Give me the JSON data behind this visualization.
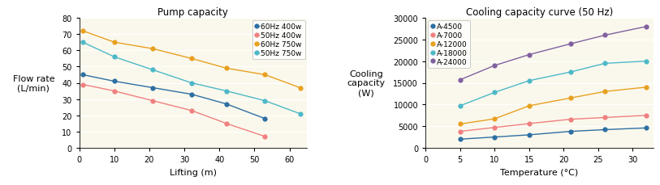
{
  "title1": "Pump capacity",
  "title2": "Cooling capacity curve (50 Hz)",
  "xlabel1": "Lifting (m)",
  "xlabel2": "Temperature (°C)",
  "ylabel1": "Flow rate\n(L/min)",
  "ylabel2": "Cooling\ncapacity\n(W)",
  "bg_color": "#faf8ec",
  "pump_x": [
    1,
    10,
    21,
    32,
    42,
    53,
    63
  ],
  "pump_60hz_400w": [
    45,
    41,
    37,
    33,
    27,
    18,
    null
  ],
  "pump_50hz_400w": [
    39,
    35,
    29,
    23,
    15,
    7,
    null
  ],
  "pump_60hz_750w": [
    72,
    65,
    61,
    55,
    49,
    45,
    37
  ],
  "pump_50hz_750w": [
    65,
    56,
    48,
    40,
    35,
    29,
    21
  ],
  "pump_colors": [
    "#2e6fa3",
    "#f08080",
    "#e8a020",
    "#4db8c8"
  ],
  "pump_labels": [
    "60Hz 400w",
    "50Hz 400w",
    "60Hz 750w",
    "50Hz 750w"
  ],
  "cool_x": [
    5,
    10,
    15,
    21,
    26,
    32
  ],
  "cool_A4500": [
    2000,
    2500,
    3000,
    3800,
    4200,
    4600
  ],
  "cool_A7000": [
    3800,
    4700,
    5600,
    6600,
    7000,
    7500
  ],
  "cool_A12000": [
    5500,
    6700,
    9700,
    11500,
    13000,
    14000
  ],
  "cool_A18000": [
    9700,
    12800,
    15500,
    17500,
    19500,
    20000
  ],
  "cool_A24000": [
    15700,
    19000,
    21500,
    24000,
    26000,
    28000
  ],
  "cool_colors": [
    "#2e6fa3",
    "#f08080",
    "#e8a020",
    "#4db8c8",
    "#8060a0"
  ],
  "cool_labels": [
    "A-4500",
    "A-7000",
    "A-12000",
    "A-18000",
    "A-24000"
  ],
  "pump_xlim": [
    0,
    65
  ],
  "pump_ylim": [
    0,
    80
  ],
  "pump_xticks": [
    0,
    10,
    20,
    30,
    40,
    50,
    60
  ],
  "pump_yticks": [
    0,
    10,
    20,
    30,
    40,
    50,
    60,
    70,
    80
  ],
  "cool_xlim": [
    0,
    33
  ],
  "cool_ylim": [
    0,
    30000
  ],
  "cool_xticks": [
    0,
    5,
    10,
    15,
    20,
    25,
    30
  ],
  "cool_yticks": [
    0,
    5000,
    10000,
    15000,
    20000,
    25000,
    30000
  ]
}
